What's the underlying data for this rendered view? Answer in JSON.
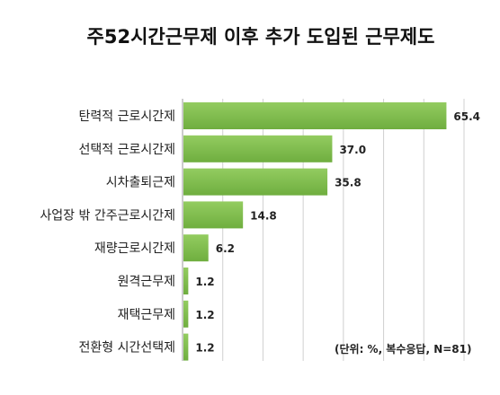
{
  "chart_data": {
    "type": "bar",
    "orientation": "horizontal",
    "title": "주52시간근무제 이후 추가 도입된 근무제도",
    "note": "(단위: %, 복수응답, N=81)",
    "categories": [
      "탄력적 근로시간제",
      "선택적 근로시간제",
      "시차출퇴근제",
      "사업장 밖 간주근로시간제",
      "재량근로시간제",
      "원격근무제",
      "재택근무제",
      "전환형 시간선택제"
    ],
    "values": [
      65.4,
      37.0,
      35.8,
      14.8,
      6.2,
      1.2,
      1.2,
      1.2
    ],
    "value_labels": [
      "65.4",
      "37.0",
      "35.8",
      "14.8",
      "6.2",
      "1.2",
      "1.2",
      "1.2"
    ],
    "xlim": [
      0,
      70
    ],
    "grid": true,
    "bar_color": "#6fae3f",
    "bar_color_light": "#93cc60"
  }
}
